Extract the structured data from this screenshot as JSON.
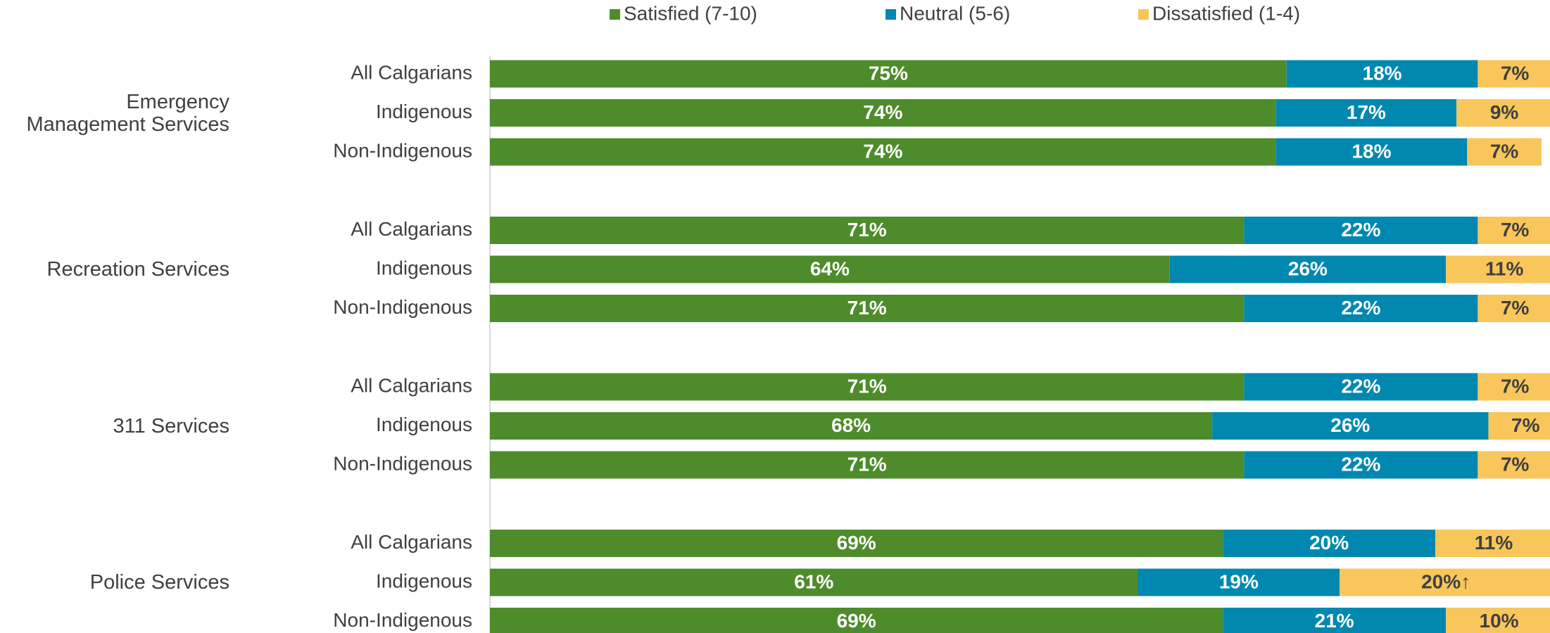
{
  "chart_data": {
    "type": "bar",
    "orientation": "horizontal",
    "stacked": true,
    "groups": [
      "Emergency Management Services",
      "Recreation Services",
      "311 Services",
      "Police Services"
    ],
    "categories": [
      "All Calgarians",
      "Indigenous",
      "Non-Indigenous",
      "All Calgarians",
      "Indigenous",
      "Non-Indigenous",
      "All Calgarians",
      "Indigenous",
      "Non-Indigenous",
      "All Calgarians",
      "Indigenous",
      "Non-Indigenous"
    ],
    "xlim": [
      0,
      100
    ],
    "legend": "top",
    "series": [
      {
        "name": "Satisfied (7-10)",
        "color": "#4e8c2b",
        "label_color": "#ffffff",
        "values": [
          75,
          74,
          74,
          71,
          64,
          71,
          71,
          68,
          71,
          69,
          61,
          69
        ],
        "value_labels": [
          "75%",
          "74%",
          "74%",
          "71%",
          "64%",
          "71%",
          "71%",
          "68%",
          "71%",
          "69%",
          "61%",
          "69%"
        ]
      },
      {
        "name": "Neutral (5-6)",
        "color": "#0088b0",
        "label_color": "#ffffff",
        "values": [
          18,
          17,
          18,
          22,
          26,
          22,
          22,
          26,
          22,
          20,
          19,
          21
        ],
        "value_labels": [
          "18%",
          "17%",
          "18%",
          "22%",
          "26%",
          "22%",
          "22%",
          "26%",
          "22%",
          "20%",
          "19%",
          "21%"
        ]
      },
      {
        "name": "Dissatisfied (1-4)",
        "color": "#f8c65a",
        "label_color": "#404040",
        "values": [
          7,
          9,
          7,
          7,
          11,
          7,
          7,
          7,
          7,
          11,
          20,
          10
        ],
        "value_labels": [
          "7%",
          "9%",
          "7%",
          "7%",
          "11%",
          "7%",
          "7%",
          "7%",
          "7%",
          "11%",
          "20%↑",
          "10%"
        ]
      }
    ]
  }
}
